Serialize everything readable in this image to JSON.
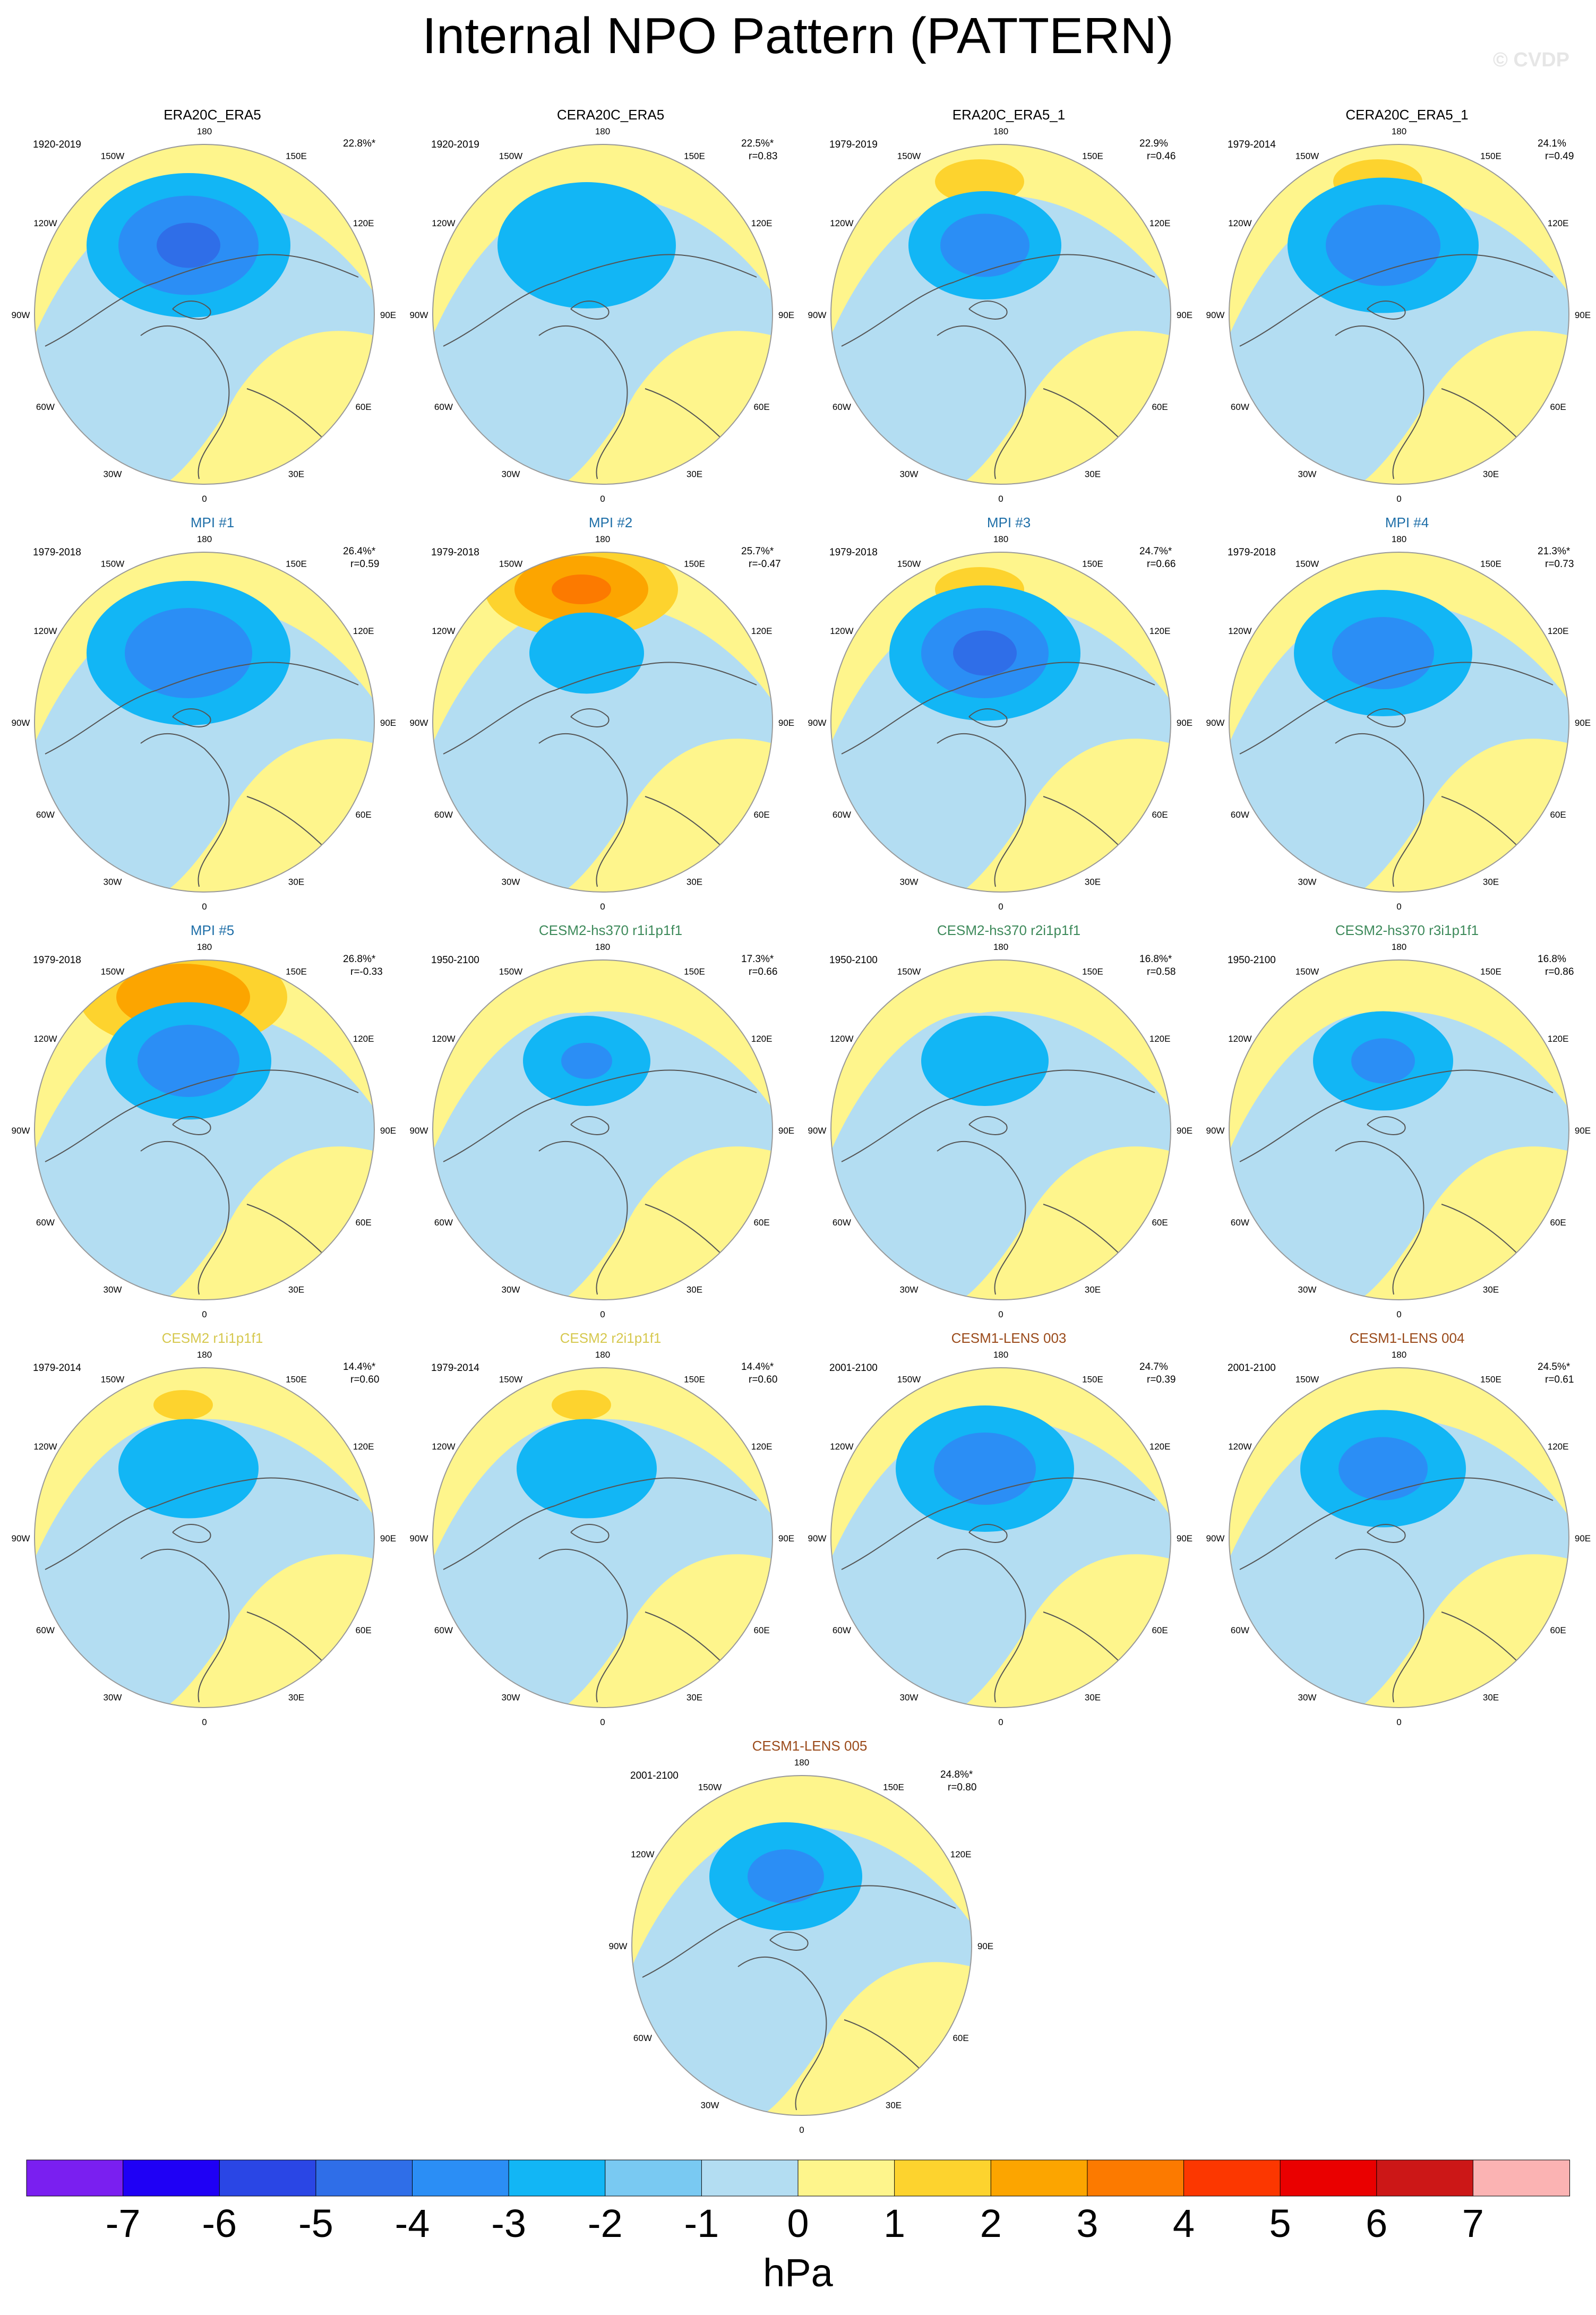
{
  "title": "Internal NPO Pattern (PATTERN)",
  "watermark": "© CVDP",
  "lon_labels": [
    "180",
    "150E",
    "120E",
    "90E",
    "60E",
    "30E",
    "0",
    "30W",
    "60W",
    "90W",
    "120W",
    "150W"
  ],
  "colors": {
    "land_outline": "#555555",
    "circle_border": "#999999",
    "pos1": "#fef58c",
    "neg1": "#b3ddf2"
  },
  "panels": [
    {
      "title": "ERA20C_ERA5",
      "title_color": "#000000",
      "period": "1920-2019",
      "pct": "22.8%*",
      "r": "",
      "blue_lobes": [
        [
          -1,
          2.2
        ],
        [
          -2,
          1.6
        ],
        [
          -3,
          1.1
        ],
        [
          -4,
          0.5
        ]
      ],
      "yellow_lobes": []
    },
    {
      "title": "CERA20C_ERA5",
      "title_color": "#000000",
      "period": "1920-2019",
      "pct": "22.5%*",
      "r": "r=0.83",
      "blue_lobes": [
        [
          -1,
          2.0
        ],
        [
          -2,
          1.4
        ]
      ],
      "yellow_lobes": []
    },
    {
      "title": "ERA20C_ERA5_1",
      "title_color": "#000000",
      "period": "1979-2019",
      "pct": "22.9%",
      "r": "r=0.46",
      "blue_lobes": [
        [
          -1,
          1.8
        ],
        [
          -2,
          1.2
        ],
        [
          -3,
          0.7
        ]
      ],
      "yellow_lobes": [
        [
          2,
          0.6
        ]
      ]
    },
    {
      "title": "CERA20C_ERA5_1",
      "title_color": "#000000",
      "period": "1979-2014",
      "pct": "24.1%",
      "r": "r=0.49",
      "blue_lobes": [
        [
          -1,
          2.0
        ],
        [
          -2,
          1.5
        ],
        [
          -3,
          0.9
        ]
      ],
      "yellow_lobes": [
        [
          2,
          0.6
        ]
      ]
    },
    {
      "title": "MPI #1",
      "title_color": "#1f6fa8",
      "period": "1979-2018",
      "pct": "26.4%*",
      "r": "r=0.59",
      "blue_lobes": [
        [
          -1,
          2.2
        ],
        [
          -2,
          1.6
        ],
        [
          -3,
          1.0
        ]
      ],
      "yellow_lobes": [
        [
          1,
          0.3
        ]
      ]
    },
    {
      "title": "MPI #2",
      "title_color": "#1f6fa8",
      "period": "1979-2018",
      "pct": "25.7%*",
      "r": "r=-0.47",
      "blue_lobes": [
        [
          -1,
          1.8
        ],
        [
          -2,
          0.9
        ]
      ],
      "yellow_lobes": [
        [
          2,
          1.3
        ],
        [
          3,
          0.9
        ],
        [
          4,
          0.4
        ]
      ]
    },
    {
      "title": "MPI #3",
      "title_color": "#1f6fa8",
      "period": "1979-2018",
      "pct": "24.7%*",
      "r": "r=0.66",
      "blue_lobes": [
        [
          -1,
          2.2
        ],
        [
          -2,
          1.5
        ],
        [
          -3,
          1.0
        ],
        [
          -4,
          0.5
        ]
      ],
      "yellow_lobes": [
        [
          2,
          0.6
        ]
      ]
    },
    {
      "title": "MPI #4",
      "title_color": "#1f6fa8",
      "period": "1979-2018",
      "pct": "21.3%*",
      "r": "r=0.73",
      "blue_lobes": [
        [
          -1,
          2.0
        ],
        [
          -2,
          1.4
        ],
        [
          -3,
          0.8
        ]
      ],
      "yellow_lobes": []
    },
    {
      "title": "MPI #5",
      "title_color": "#1f6fa8",
      "period": "1979-2018",
      "pct": "26.8%*",
      "r": "r=-0.33",
      "blue_lobes": [
        [
          -1,
          1.9
        ],
        [
          -2,
          1.3
        ],
        [
          -3,
          0.8
        ]
      ],
      "yellow_lobes": [
        [
          2,
          1.4
        ],
        [
          3,
          0.9
        ]
      ]
    },
    {
      "title": "CESM2-hs370 r1i1p1f1",
      "title_color": "#3e8a5b",
      "period": "1950-2100",
      "pct": "17.3%*",
      "r": "r=0.66",
      "blue_lobes": [
        [
          -1,
          2.0
        ],
        [
          -2,
          1.0
        ],
        [
          -3,
          0.4
        ]
      ],
      "yellow_lobes": []
    },
    {
      "title": "CESM2-hs370 r2i1p1f1",
      "title_color": "#3e8a5b",
      "period": "1950-2100",
      "pct": "16.8%*",
      "r": "r=0.58",
      "blue_lobes": [
        [
          -1,
          2.0
        ],
        [
          -2,
          1.0
        ]
      ],
      "yellow_lobes": []
    },
    {
      "title": "CESM2-hs370 r3i1p1f1",
      "title_color": "#3e8a5b",
      "period": "1950-2100",
      "pct": "16.8%",
      "r": "r=0.86",
      "blue_lobes": [
        [
          -1,
          1.9
        ],
        [
          -2,
          1.1
        ],
        [
          -3,
          0.5
        ]
      ],
      "yellow_lobes": []
    },
    {
      "title": "CESM2 r1i1p1f1",
      "title_color": "#d6c84e",
      "period": "1979-2014",
      "pct": "14.4%*",
      "r": "r=0.60",
      "blue_lobes": [
        [
          -1,
          2.1
        ],
        [
          -2,
          1.1
        ]
      ],
      "yellow_lobes": [
        [
          2,
          0.4
        ]
      ]
    },
    {
      "title": "CESM2 r2i1p1f1",
      "title_color": "#d6c84e",
      "period": "1979-2014",
      "pct": "14.4%*",
      "r": "r=0.60",
      "blue_lobes": [
        [
          -1,
          2.1
        ],
        [
          -2,
          1.1
        ]
      ],
      "yellow_lobes": [
        [
          2,
          0.4
        ]
      ]
    },
    {
      "title": "CESM1-LENS 003",
      "title_color": "#9a4a1a",
      "period": "2001-2100",
      "pct": "24.7%",
      "r": "r=0.39",
      "blue_lobes": [
        [
          -1,
          2.1
        ],
        [
          -2,
          1.4
        ],
        [
          -3,
          0.8
        ]
      ],
      "yellow_lobes": []
    },
    {
      "title": "CESM1-LENS 004",
      "title_color": "#9a4a1a",
      "period": "2001-2100",
      "pct": "24.5%*",
      "r": "r=0.61",
      "blue_lobes": [
        [
          -1,
          2.1
        ],
        [
          -2,
          1.3
        ],
        [
          -3,
          0.7
        ]
      ],
      "yellow_lobes": []
    },
    {
      "title": "CESM1-LENS 005",
      "title_color": "#9a4a1a",
      "period": "2001-2100",
      "pct": "24.8%*",
      "r": "r=0.80",
      "blue_lobes": [
        [
          -1,
          1.8
        ],
        [
          -2,
          1.2
        ],
        [
          -3,
          0.6
        ]
      ],
      "yellow_lobes": []
    }
  ],
  "colorbar": {
    "colors": [
      "#7a1ff0",
      "#1f00f5",
      "#2a46e5",
      "#2f6ee8",
      "#2b8ef5",
      "#12b6f5",
      "#79c9f2",
      "#b3ddf2",
      "#fef58c",
      "#fdd32e",
      "#fca500",
      "#fc7a00",
      "#fc3700",
      "#ea0000",
      "#cc1717",
      "#fbb3b3"
    ],
    "labels": [
      "-7",
      "-6",
      "-5",
      "-4",
      "-3",
      "-2",
      "-1",
      "0",
      "1",
      "2",
      "3",
      "4",
      "5",
      "6",
      "7"
    ],
    "units": "hPa"
  }
}
